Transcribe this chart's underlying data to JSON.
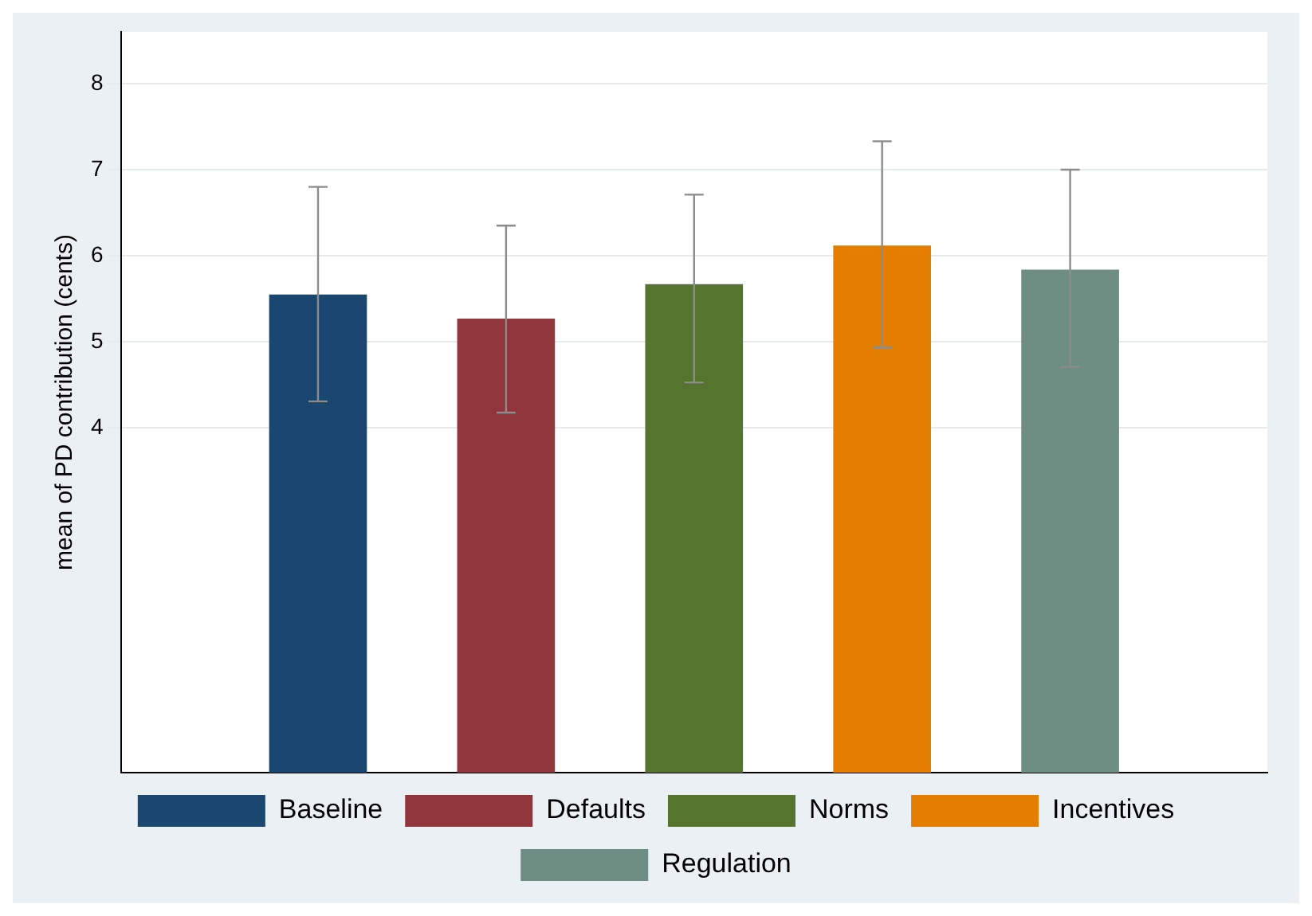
{
  "chart_data": {
    "type": "bar",
    "ylabel": "mean of PD contribution (cents)",
    "categories": [
      null
    ],
    "series": [
      {
        "name": "Baseline",
        "color": "#1a476f",
        "values": [
          5.55
        ],
        "errors": [
          [
            4.31,
            6.8
          ]
        ]
      },
      {
        "name": "Defaults",
        "color": "#90353b",
        "values": [
          5.27
        ],
        "errors": [
          [
            4.18,
            6.35
          ]
        ]
      },
      {
        "name": "Norms",
        "color": "#55752f",
        "values": [
          5.67
        ],
        "errors": [
          [
            4.53,
            6.71
          ]
        ]
      },
      {
        "name": "Incentives",
        "color": "#e37e00",
        "values": [
          6.12
        ],
        "errors": [
          [
            4.94,
            7.33
          ]
        ]
      },
      {
        "name": "Regulation",
        "color": "#6e8e84",
        "values": [
          5.84
        ],
        "errors": [
          [
            4.71,
            7.0
          ]
        ]
      }
    ],
    "ylim": [
      0,
      8.6
    ],
    "yticks": [
      4,
      5,
      6,
      7,
      8
    ],
    "grid": "y",
    "legend": "bottom",
    "tick_labels": "y"
  }
}
